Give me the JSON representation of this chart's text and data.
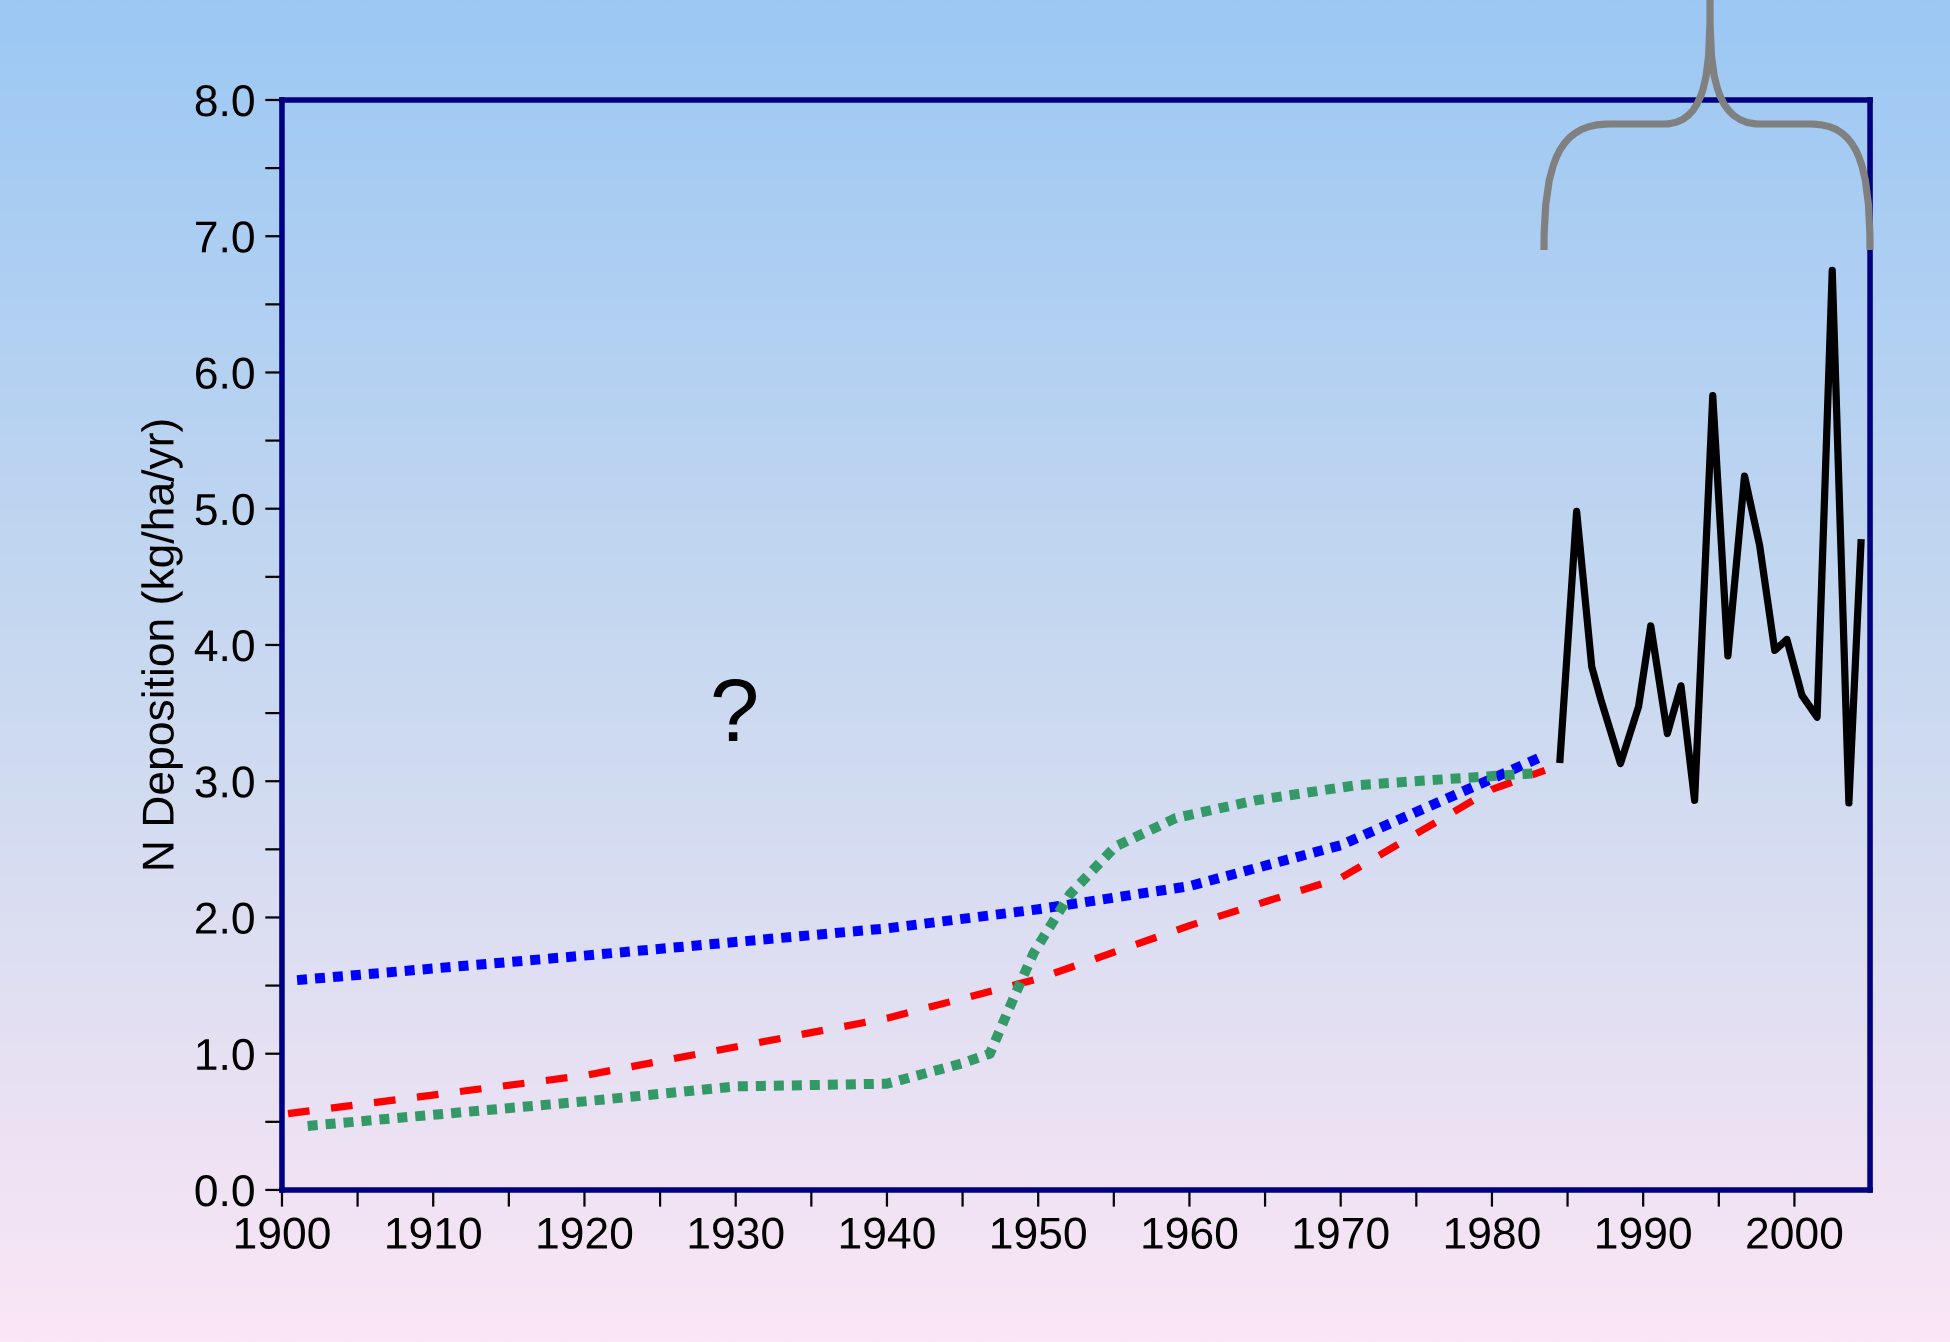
{
  "chart_data": {
    "type": "line",
    "ylabel": "N Deposition (kg/ha/yr)",
    "xlim": [
      1900,
      2005
    ],
    "ylim": [
      0,
      8
    ],
    "xticks": [
      1900,
      {
        "value": 1905,
        "label": null
      },
      1910,
      {
        "value": 1915,
        "label": null
      },
      1920,
      {
        "value": 1925,
        "label": null
      },
      1930,
      {
        "value": 1935,
        "label": null
      },
      1940,
      {
        "value": 1945,
        "label": null
      },
      1950,
      {
        "value": 1955,
        "label": null
      },
      1960,
      {
        "value": 1965,
        "label": null
      },
      1970,
      {
        "value": 1975,
        "label": null
      },
      1980,
      {
        "value": 1985,
        "label": null
      },
      1990,
      {
        "value": 1995,
        "label": null
      },
      2000
    ],
    "yticks": [
      {
        "value": 0,
        "label": "0.0"
      },
      {
        "value": 0.5,
        "label": null
      },
      {
        "value": 1,
        "label": "1.0"
      },
      {
        "value": 1.5,
        "label": null
      },
      {
        "value": 2,
        "label": "2.0"
      },
      {
        "value": 2.5,
        "label": null
      },
      {
        "value": 3,
        "label": "3.0"
      },
      {
        "value": 3.5,
        "label": null
      },
      {
        "value": 4,
        "label": "4.0"
      },
      {
        "value": 4.5,
        "label": null
      },
      {
        "value": 5,
        "label": "5.0"
      },
      {
        "value": 5.5,
        "label": null
      },
      {
        "value": 6,
        "label": "6.0"
      },
      {
        "value": 6.5,
        "label": null
      },
      {
        "value": 7,
        "label": "7.0"
      },
      {
        "value": 7.5,
        "label": null
      },
      {
        "value": 8,
        "label": "8.0"
      }
    ],
    "grid": false,
    "annotations": [
      "?"
    ],
    "series": [
      {
        "color": "#0000ff",
        "line_style": "dotted",
        "x": [
          1901,
          1920,
          1940,
          1950,
          1960,
          1970,
          1983.5
        ],
        "values": [
          1.54,
          1.72,
          1.92,
          2.06,
          2.23,
          2.53,
          3.19
        ]
      },
      {
        "color": "#ff0000",
        "line_style": "dashed",
        "x": [
          1900.4,
          1920,
          1940,
          1950,
          1960,
          1970,
          1980,
          1983.5
        ],
        "values": [
          0.56,
          0.84,
          1.26,
          1.55,
          1.94,
          2.29,
          2.94,
          3.08
        ]
      },
      {
        "color": "#339966",
        "line_style": "dotted",
        "x": [
          1901.7,
          1920,
          1930,
          1940,
          1945,
          1946.8,
          1948.5,
          1949.7,
          1952.1,
          1955.1,
          1959.1,
          1964.4,
          1971,
          1977.6,
          1983.1
        ],
        "values": [
          0.47,
          0.65,
          0.76,
          0.78,
          0.93,
          1.0,
          1.44,
          1.74,
          2.17,
          2.52,
          2.73,
          2.86,
          2.97,
          3.02,
          3.06
        ]
      },
      {
        "color": "#000000",
        "line_style": "solid",
        "x": [
          1984.5,
          1985.6,
          1986.6,
          1987.2,
          1988.5,
          1989.7,
          1990.5,
          1991.6,
          1992.5,
          1993.4,
          1994.6,
          1995.6,
          1996.7,
          1997.7,
          1998.7,
          1999.5,
          2000.5,
          2001.5,
          2002.5,
          2003.6,
          2004.4
        ],
        "values": [
          3.16,
          4.98,
          3.84,
          3.6,
          3.13,
          3.55,
          4.14,
          3.35,
          3.7,
          2.86,
          5.83,
          3.92,
          5.24,
          4.73,
          3.96,
          4.04,
          3.63,
          3.47,
          6.75,
          2.84,
          4.75
        ]
      }
    ]
  }
}
